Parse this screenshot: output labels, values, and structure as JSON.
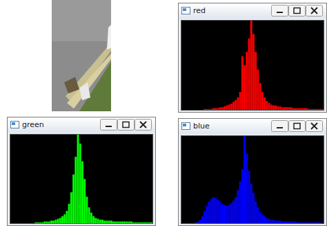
{
  "chart_data": [
    {
      "type": "histogram",
      "title": "red",
      "color": "#ff0000",
      "xlim": [
        0,
        256
      ],
      "ylim": [
        0,
        100
      ],
      "tick_labels": false,
      "bins": [
        0,
        4,
        8,
        12,
        16,
        20,
        24,
        28,
        32,
        36,
        40,
        44,
        48,
        52,
        56,
        60,
        64,
        68,
        72,
        76,
        80,
        84,
        88,
        92,
        96,
        100,
        104,
        108,
        112,
        116,
        120,
        124,
        128,
        132,
        136,
        140,
        144,
        148,
        152,
        156,
        160,
        164,
        168,
        172,
        176,
        180,
        184,
        188,
        192,
        196,
        200,
        204,
        208,
        212,
        216,
        220,
        224,
        228,
        232,
        236,
        240,
        244,
        248,
        252,
        256
      ],
      "counts": [
        0,
        0,
        0,
        0,
        0,
        0,
        0,
        0,
        0,
        0,
        1,
        1,
        1,
        1,
        2,
        2,
        2,
        3,
        3,
        4,
        5,
        6,
        7,
        9,
        11,
        14,
        20,
        60,
        50,
        65,
        80,
        100,
        85,
        65,
        45,
        30,
        20,
        14,
        10,
        8,
        6,
        5,
        5,
        4,
        4,
        3,
        3,
        3,
        3,
        3,
        2,
        2,
        2,
        2,
        2,
        2,
        2,
        1,
        1,
        1,
        1,
        1,
        1,
        1
      ]
    },
    {
      "type": "histogram",
      "title": "green",
      "color": "#00ff00",
      "xlim": [
        0,
        256
      ],
      "ylim": [
        0,
        100
      ],
      "tick_labels": false,
      "bins": [
        0,
        4,
        8,
        12,
        16,
        20,
        24,
        28,
        32,
        36,
        40,
        44,
        48,
        52,
        56,
        60,
        64,
        68,
        72,
        76,
        80,
        84,
        88,
        92,
        96,
        100,
        104,
        108,
        112,
        116,
        120,
        124,
        128,
        132,
        136,
        140,
        144,
        148,
        152,
        156,
        160,
        164,
        168,
        172,
        176,
        180,
        184,
        188,
        192,
        196,
        200,
        204,
        208,
        212,
        216,
        220,
        224,
        228,
        232,
        236,
        240,
        244,
        248,
        252,
        256
      ],
      "counts": [
        0,
        0,
        0,
        0,
        0,
        0,
        0,
        0,
        0,
        0,
        0,
        1,
        1,
        1,
        1,
        2,
        2,
        2,
        3,
        3,
        4,
        5,
        6,
        8,
        10,
        14,
        22,
        35,
        55,
        75,
        100,
        90,
        70,
        50,
        30,
        18,
        12,
        8,
        6,
        5,
        4,
        4,
        3,
        3,
        3,
        3,
        2,
        2,
        2,
        2,
        2,
        2,
        2,
        2,
        2,
        1,
        1,
        1,
        1,
        1,
        1,
        1,
        1,
        1
      ]
    },
    {
      "type": "histogram",
      "title": "blue",
      "color": "#0000ff",
      "xlim": [
        0,
        256
      ],
      "ylim": [
        0,
        100
      ],
      "tick_labels": false,
      "bins": [
        0,
        4,
        8,
        12,
        16,
        20,
        24,
        28,
        32,
        36,
        40,
        44,
        48,
        52,
        56,
        60,
        64,
        68,
        72,
        76,
        80,
        84,
        88,
        92,
        96,
        100,
        104,
        108,
        112,
        116,
        120,
        124,
        128,
        132,
        136,
        140,
        144,
        148,
        152,
        156,
        160,
        164,
        168,
        172,
        176,
        180,
        184,
        188,
        192,
        196,
        200,
        204,
        208,
        212,
        216,
        220,
        224,
        228,
        232,
        236,
        240,
        244,
        248,
        252,
        256
      ],
      "counts": [
        0,
        0,
        0,
        0,
        0,
        0,
        1,
        2,
        4,
        8,
        14,
        20,
        25,
        28,
        30,
        29,
        27,
        24,
        22,
        21,
        20,
        21,
        23,
        26,
        30,
        38,
        48,
        62,
        100,
        80,
        60,
        45,
        35,
        25,
        18,
        13,
        10,
        8,
        6,
        5,
        4,
        4,
        3,
        3,
        3,
        2,
        2,
        2,
        2,
        2,
        2,
        2,
        1,
        1,
        1,
        1,
        1,
        1,
        1,
        1,
        1,
        1,
        1,
        0
      ]
    }
  ]
}
